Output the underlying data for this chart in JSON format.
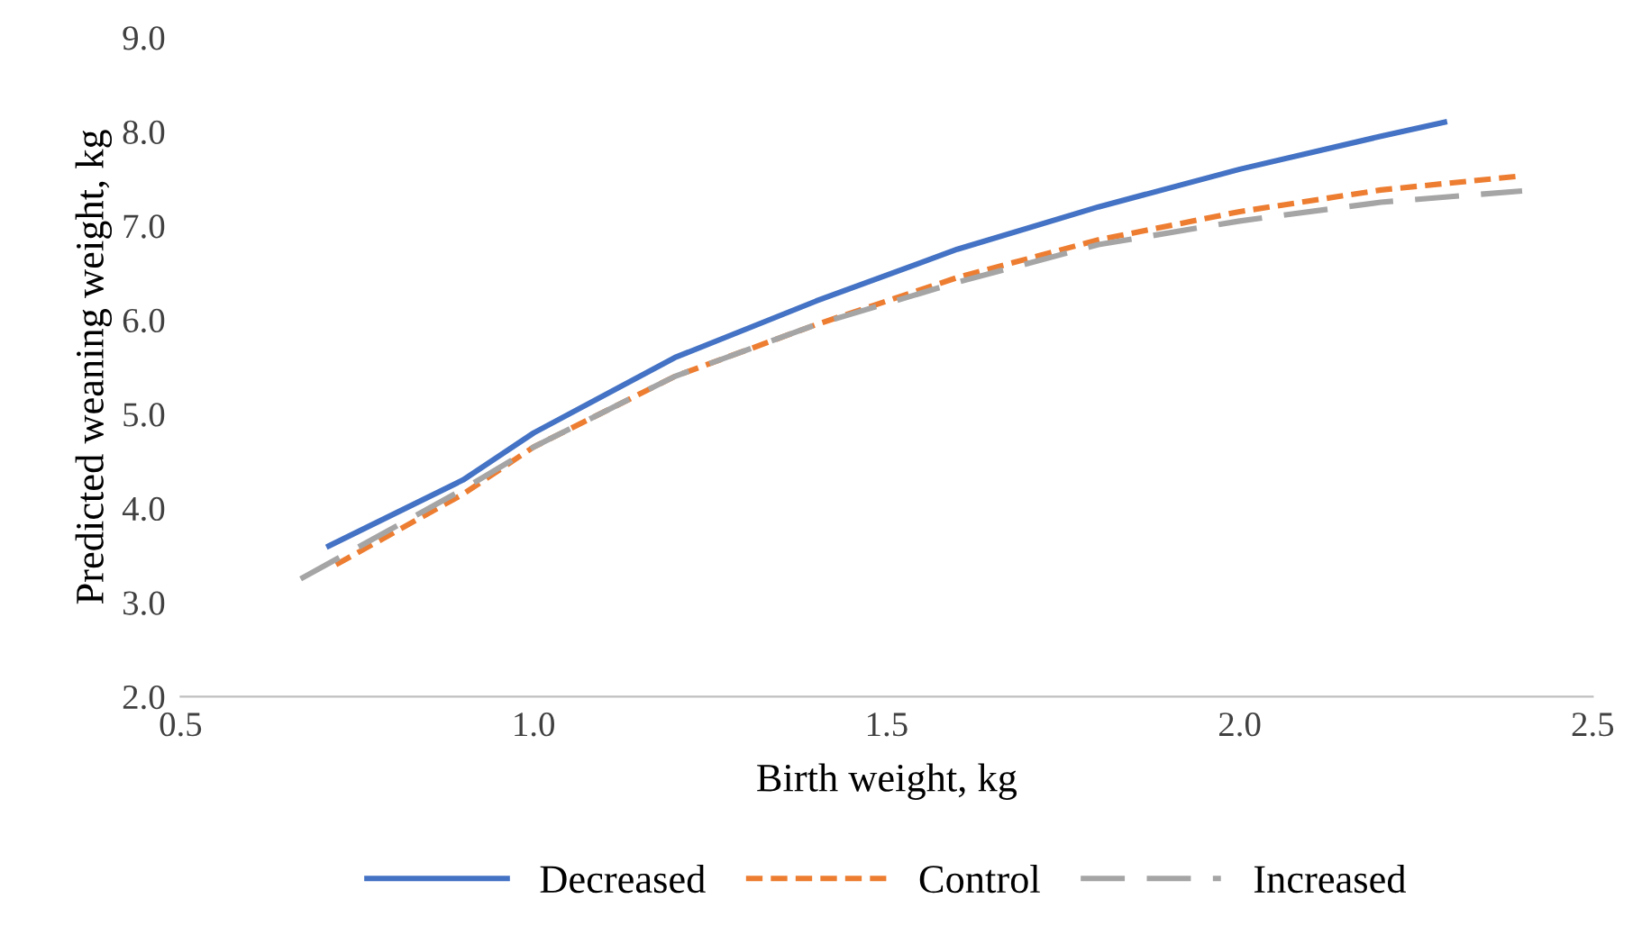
{
  "chart_data": {
    "type": "line",
    "xlabel": "Birth weight, kg",
    "ylabel": "Predicted weaning weight, kg",
    "xlim": [
      0.5,
      2.5
    ],
    "xticks": [
      {
        "value": 0.5,
        "label": "0.5"
      },
      {
        "value": 1.0,
        "label": "1.0"
      },
      {
        "value": 1.5,
        "label": "1.5"
      },
      {
        "value": 2.0,
        "label": "2.0"
      },
      {
        "value": 2.5,
        "label": "2.5"
      }
    ],
    "ylim": [
      2.0,
      9.0
    ],
    "yticks": [
      {
        "value": 2,
        "label": "2.0"
      },
      {
        "value": 3,
        "label": "3.0"
      },
      {
        "value": 4,
        "label": "4.0"
      },
      {
        "value": 5,
        "label": "5.0"
      },
      {
        "value": 6,
        "label": "6.0"
      },
      {
        "value": 7,
        "label": "7.0"
      },
      {
        "value": 8,
        "label": "8.0"
      },
      {
        "value": 9,
        "label": "9.0"
      }
    ],
    "grid": false,
    "legend": "bottom",
    "marker": "none",
    "series": [
      {
        "name": "Decreased",
        "color": "#4472c4",
        "line_style": "solid",
        "x": [
          0.71,
          0.9,
          1.0,
          1.2,
          1.4,
          1.6,
          1.8,
          2.0,
          2.2,
          2.29
        ],
        "values": [
          3.6,
          4.3,
          4.8,
          5.6,
          6.2,
          6.75,
          7.2,
          7.6,
          7.95,
          8.1
        ]
      },
      {
        "name": "Control",
        "color": "#ed7d31",
        "line_style": "dotted",
        "x": [
          0.72,
          0.9,
          1.0,
          1.2,
          1.4,
          1.6,
          1.8,
          2.0,
          2.2,
          2.4
        ],
        "values": [
          3.4,
          4.15,
          4.65,
          5.4,
          5.95,
          6.45,
          6.85,
          7.15,
          7.38,
          7.53
        ]
      },
      {
        "name": "Increased",
        "color": "#a5a5a5",
        "line_style": "dashed",
        "x": [
          0.67,
          0.9,
          1.0,
          1.2,
          1.4,
          1.6,
          1.8,
          2.0,
          2.2,
          2.4
        ],
        "values": [
          3.25,
          4.2,
          4.65,
          5.4,
          5.95,
          6.4,
          6.8,
          7.05,
          7.25,
          7.37
        ]
      }
    ]
  }
}
